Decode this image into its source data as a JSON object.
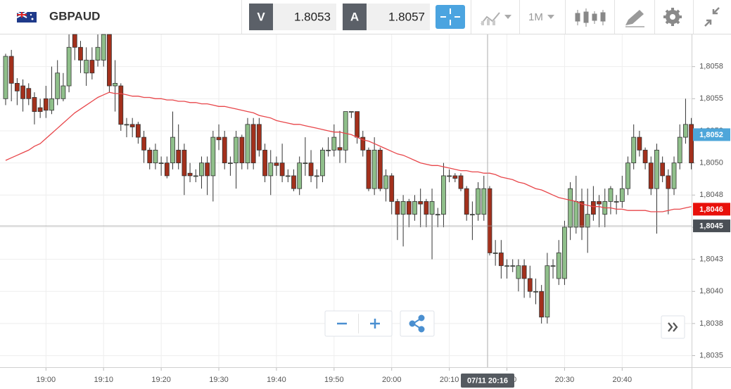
{
  "header": {
    "symbol": "GBPAUD",
    "bid_label": "V",
    "bid": 1.8053,
    "ask_label": "A",
    "ask": 1.8057,
    "timeframe": "1M"
  },
  "chart_data": {
    "type": "candlestick",
    "x": [
      "18:53",
      "18:54",
      "18:55",
      "18:56",
      "18:57",
      "18:58",
      "18:59",
      "19:00",
      "19:01",
      "19:02",
      "19:03",
      "19:04",
      "19:05",
      "19:06",
      "19:07",
      "19:08",
      "19:09",
      "19:10",
      "19:11",
      "19:12",
      "19:13",
      "19:14",
      "19:15",
      "19:16",
      "19:17",
      "19:18",
      "19:19",
      "19:20",
      "19:21",
      "19:22",
      "19:23",
      "19:24",
      "19:25",
      "19:26",
      "19:27",
      "19:28",
      "19:29",
      "19:30",
      "19:31",
      "19:32",
      "19:33",
      "19:34",
      "19:35",
      "19:36",
      "19:37",
      "19:38",
      "19:39",
      "19:40",
      "19:41",
      "19:42",
      "19:43",
      "19:44",
      "19:45",
      "19:46",
      "19:47",
      "19:48",
      "19:49",
      "19:50",
      "19:51",
      "19:52",
      "19:53",
      "19:54",
      "19:55",
      "19:56",
      "19:57",
      "19:58",
      "19:59",
      "20:00",
      "20:01",
      "20:02",
      "20:03",
      "20:04",
      "20:05",
      "20:06",
      "20:07",
      "20:08",
      "20:09",
      "20:10",
      "20:11",
      "20:12",
      "20:13",
      "20:14",
      "20:15",
      "20:16",
      "20:17",
      "20:18",
      "20:19",
      "20:20",
      "20:21",
      "20:22",
      "20:23",
      "20:24",
      "20:25",
      "20:26",
      "20:27",
      "20:28",
      "20:29",
      "20:30",
      "20:31",
      "20:32",
      "20:33",
      "20:34",
      "20:35",
      "20:36",
      "20:37",
      "20:38",
      "20:39",
      "20:40",
      "20:41",
      "20:42",
      "20:43",
      "20:44",
      "20:45",
      "20:46",
      "20:47",
      "20:48",
      "20:49",
      "20:50",
      "20:51",
      "20:52"
    ],
    "open": [
      1.8055,
      1.80583,
      1.80562,
      1.8056,
      1.80558,
      1.80551,
      1.80543,
      1.8055,
      1.80541,
      1.8055,
      1.8055,
      1.8056,
      1.806,
      1.8059,
      1.8057,
      1.8058,
      1.8058,
      1.8058,
      1.806,
      1.8056,
      1.8056,
      1.8053,
      1.8053,
      1.8053,
      1.8052,
      1.8051,
      1.805,
      1.805,
      1.805,
      1.805,
      1.8051,
      1.8051,
      1.80492,
      1.8049,
      1.8049,
      1.805,
      1.8049,
      1.8052,
      1.8052,
      1.805,
      1.805,
      1.8052,
      1.805,
      1.8053,
      1.8053,
      1.8051,
      1.8049,
      1.805,
      1.805,
      1.8049,
      1.8049,
      1.8048,
      1.805,
      1.805,
      1.8049,
      1.8049,
      1.8051,
      1.8051,
      1.80512,
      1.8051,
      1.8054,
      1.8054,
      1.8052,
      1.8051,
      1.8048,
      1.8051,
      1.8048,
      1.8049,
      1.8047,
      1.8046,
      1.8047,
      1.8046,
      1.8047,
      1.8047,
      1.8046,
      1.8046,
      1.8046,
      1.8049,
      1.8049,
      1.8049,
      1.8048,
      1.8046,
      1.8046,
      1.8046,
      1.8048,
      1.8043,
      1.8043,
      1.8042,
      1.8042,
      1.8041,
      1.8042,
      1.8041,
      1.804,
      1.804,
      1.8038,
      1.8042,
      1.8041,
      1.8041,
      1.8045,
      1.8045,
      1.8047,
      1.8045,
      1.8047,
      1.8047,
      1.8046,
      1.8047,
      1.8047,
      1.8047,
      1.8048,
      1.805,
      1.8052,
      1.8051,
      1.805,
      1.8048,
      1.805,
      1.8049,
      1.8048,
      1.805,
      1.8052,
      1.8053
    ],
    "high": [
      1.80585,
      1.80588,
      1.80566,
      1.80565,
      1.80562,
      1.80555,
      1.8055,
      1.8056,
      1.80575,
      1.8058,
      1.8057,
      1.806,
      1.806,
      1.80595,
      1.8059,
      1.8059,
      1.806,
      1.806,
      1.806,
      1.8058,
      1.80562,
      1.80535,
      1.80535,
      1.80532,
      1.80525,
      1.80512,
      1.80515,
      1.80505,
      1.80505,
      1.8054,
      1.8053,
      1.80515,
      1.805,
      1.80495,
      1.80505,
      1.80505,
      1.80525,
      1.8053,
      1.80525,
      1.80505,
      1.80525,
      1.80522,
      1.80535,
      1.80535,
      1.80535,
      1.80515,
      1.8051,
      1.80505,
      1.80515,
      1.80495,
      1.80495,
      1.80505,
      1.8052,
      1.8051,
      1.80495,
      1.80512,
      1.8052,
      1.8053,
      1.80525,
      1.8054,
      1.8054,
      1.8054,
      1.80525,
      1.80512,
      1.8052,
      1.80512,
      1.80495,
      1.80492,
      1.80472,
      1.80475,
      1.80472,
      1.80475,
      1.8048,
      1.80472,
      1.8048,
      1.80465,
      1.805,
      1.80495,
      1.80492,
      1.80492,
      1.80482,
      1.8047,
      1.80485,
      1.8049,
      1.80482,
      1.8044,
      1.8044,
      1.80425,
      1.80425,
      1.80425,
      1.80425,
      1.8042,
      1.8041,
      1.80405,
      1.8043,
      1.80425,
      1.8044,
      1.80455,
      1.80485,
      1.8049,
      1.8048,
      1.8048,
      1.80482,
      1.80475,
      1.8048,
      1.80482,
      1.80475,
      1.8049,
      1.80505,
      1.8053,
      1.80525,
      1.80512,
      1.80505,
      1.80515,
      1.80505,
      1.80495,
      1.80505,
      1.8053,
      1.8055,
      1.80535
    ],
    "low": [
      1.80545,
      1.80548,
      1.80545,
      1.8054,
      1.80545,
      1.8053,
      1.80535,
      1.80535,
      1.80538,
      1.80545,
      1.80548,
      1.80555,
      1.8058,
      1.8057,
      1.8056,
      1.80565,
      1.80575,
      1.80575,
      1.80555,
      1.8054,
      1.80525,
      1.8052,
      1.8052,
      1.80515,
      1.805,
      1.80495,
      1.80495,
      1.8049,
      1.80488,
      1.80495,
      1.80495,
      1.80475,
      1.80485,
      1.80485,
      1.8048,
      1.80475,
      1.8047,
      1.8051,
      1.80495,
      1.8049,
      1.8048,
      1.80495,
      1.80495,
      1.80495,
      1.80505,
      1.80485,
      1.80475,
      1.8049,
      1.80485,
      1.80485,
      1.80478,
      1.80475,
      1.8049,
      1.80485,
      1.8048,
      1.80485,
      1.80505,
      1.80505,
      1.805,
      1.805,
      1.80535,
      1.80515,
      1.80505,
      1.80478,
      1.80475,
      1.80478,
      1.8047,
      1.8046,
      1.8044,
      1.80435,
      1.8045,
      1.80455,
      1.8045,
      1.8045,
      1.80425,
      1.8045,
      1.8045,
      1.80485,
      1.80485,
      1.80478,
      1.80455,
      1.8044,
      1.80455,
      1.80455,
      1.80428,
      1.8042,
      1.8041,
      1.8041,
      1.80415,
      1.804,
      1.80395,
      1.80395,
      1.8039,
      1.80375,
      1.80375,
      1.8041,
      1.80405,
      1.80405,
      1.8044,
      1.80445,
      1.8044,
      1.8043,
      1.80455,
      1.8045,
      1.8045,
      1.8046,
      1.8046,
      1.80465,
      1.80475,
      1.80495,
      1.80505,
      1.80495,
      1.80475,
      1.80445,
      1.80485,
      1.8046,
      1.80475,
      1.80495,
      1.80515,
      1.80495
    ],
    "close": [
      1.80583,
      1.80562,
      1.80556,
      1.8055,
      1.8055,
      1.8054,
      1.8054,
      1.80541,
      1.8055,
      1.8057,
      1.8056,
      1.8059,
      1.8059,
      1.8058,
      1.8058,
      1.8057,
      1.8059,
      1.806,
      1.8056,
      1.80562,
      1.8053,
      1.8053,
      1.80528,
      1.8052,
      1.8051,
      1.805,
      1.8051,
      1.805,
      1.8049,
      1.8052,
      1.805,
      1.8049,
      1.8049,
      1.8049,
      1.805,
      1.8049,
      1.8052,
      1.80518,
      1.805,
      1.805,
      1.8052,
      1.805,
      1.8053,
      1.805,
      1.8051,
      1.8049,
      1.805,
      1.80498,
      1.8049,
      1.8049,
      1.8048,
      1.805,
      1.805,
      1.8049,
      1.8049,
      1.8051,
      1.8051,
      1.8052,
      1.8051,
      1.8054,
      1.8054,
      1.8052,
      1.8051,
      1.8048,
      1.8051,
      1.8048,
      1.8049,
      1.8047,
      1.8046,
      1.8047,
      1.8046,
      1.8047,
      1.80468,
      1.8046,
      1.8047,
      1.8046,
      1.8049,
      1.8049,
      1.80488,
      1.8048,
      1.8046,
      1.8046,
      1.8048,
      1.8048,
      1.8043,
      1.8043,
      1.8042,
      1.8042,
      1.8042,
      1.8042,
      1.8041,
      1.804,
      1.804,
      1.8038,
      1.8042,
      1.8042,
      1.8043,
      1.8045,
      1.8048,
      1.8047,
      1.8045,
      1.8046,
      1.8046,
      1.80468,
      1.8047,
      1.8048,
      1.8047,
      1.8048,
      1.805,
      1.8052,
      1.8051,
      1.805,
      1.8048,
      1.8051,
      1.8049,
      1.8048,
      1.805,
      1.8052,
      1.8053,
      1.805
    ],
    "up_color": "#8fbf8a",
    "down_color": "#a3301c",
    "ma": {
      "color": "#e8464a",
      "values": [
        1.80502,
        1.80504,
        1.80506,
        1.80508,
        1.8051,
        1.80513,
        1.80515,
        1.80519,
        1.80523,
        1.80527,
        1.80531,
        1.80535,
        1.80539,
        1.80542,
        1.80545,
        1.80548,
        1.80551,
        1.80553,
        1.80555,
        1.80554,
        1.80554,
        1.80553,
        1.80552,
        1.80552,
        1.80551,
        1.80551,
        1.8055,
        1.8055,
        1.80549,
        1.80549,
        1.80548,
        1.80548,
        1.80547,
        1.80547,
        1.80546,
        1.80546,
        1.80545,
        1.80544,
        1.80544,
        1.80543,
        1.80542,
        1.80541,
        1.8054,
        1.80539,
        1.80537,
        1.80536,
        1.80535,
        1.80533,
        1.80532,
        1.80531,
        1.8053,
        1.8053,
        1.80529,
        1.80528,
        1.80527,
        1.80526,
        1.80525,
        1.80524,
        1.80524,
        1.80523,
        1.80522,
        1.8052,
        1.80518,
        1.80517,
        1.80515,
        1.80513,
        1.80511,
        1.80509,
        1.80507,
        1.80506,
        1.80504,
        1.80502,
        1.805,
        1.80499,
        1.80498,
        1.80498,
        1.80497,
        1.80496,
        1.80495,
        1.80494,
        1.80494,
        1.80493,
        1.80493,
        1.80492,
        1.80492,
        1.80491,
        1.80489,
        1.80488,
        1.80487,
        1.80485,
        1.80484,
        1.80482,
        1.8048,
        1.80479,
        1.80477,
        1.80475,
        1.80473,
        1.80472,
        1.80471,
        1.8047,
        1.80468,
        1.80467,
        1.80466,
        1.80466,
        1.80465,
        1.80465,
        1.80464,
        1.80464,
        1.80463,
        1.80463,
        1.80463,
        1.80463,
        1.80462,
        1.80462,
        1.80462,
        1.80463,
        1.80464,
        1.80464,
        1.80465,
        1.80466
      ]
    },
    "ylim": [
      1.80341,
      1.806
    ],
    "yticks": [
      {
        "value": 1.8035,
        "label": "1,8035"
      },
      {
        "value": 1.80375,
        "label": "1,8038"
      },
      {
        "value": 1.804,
        "label": "1,8040"
      },
      {
        "value": 1.80425,
        "label": "1,8043"
      },
      {
        "value": 1.8045,
        "label": "1,8045"
      },
      {
        "value": 1.80475,
        "label": "1,8048"
      },
      {
        "value": 1.805,
        "label": "1,8050"
      },
      {
        "value": 1.80525,
        "label": "1,8053"
      },
      {
        "value": 1.8055,
        "label": "1,8055"
      },
      {
        "value": 1.80575,
        "label": "1,8058"
      }
    ],
    "xticks": [
      "19:00",
      "19:10",
      "19:20",
      "19:30",
      "19:40",
      "19:50",
      "20:00",
      "20:10",
      "20:20",
      "20:30",
      "20:40"
    ],
    "grid": true,
    "price_labels": [
      {
        "value": 1.80522,
        "label": "1,8052",
        "color": "#4ea6da"
      },
      {
        "value": 1.80464,
        "label": "1,8046",
        "color": "#e8100a"
      }
    ],
    "crosshair": {
      "time_label": "07/11 20:16",
      "price": {
        "value": 1.80451,
        "label": "1,8045"
      }
    }
  }
}
